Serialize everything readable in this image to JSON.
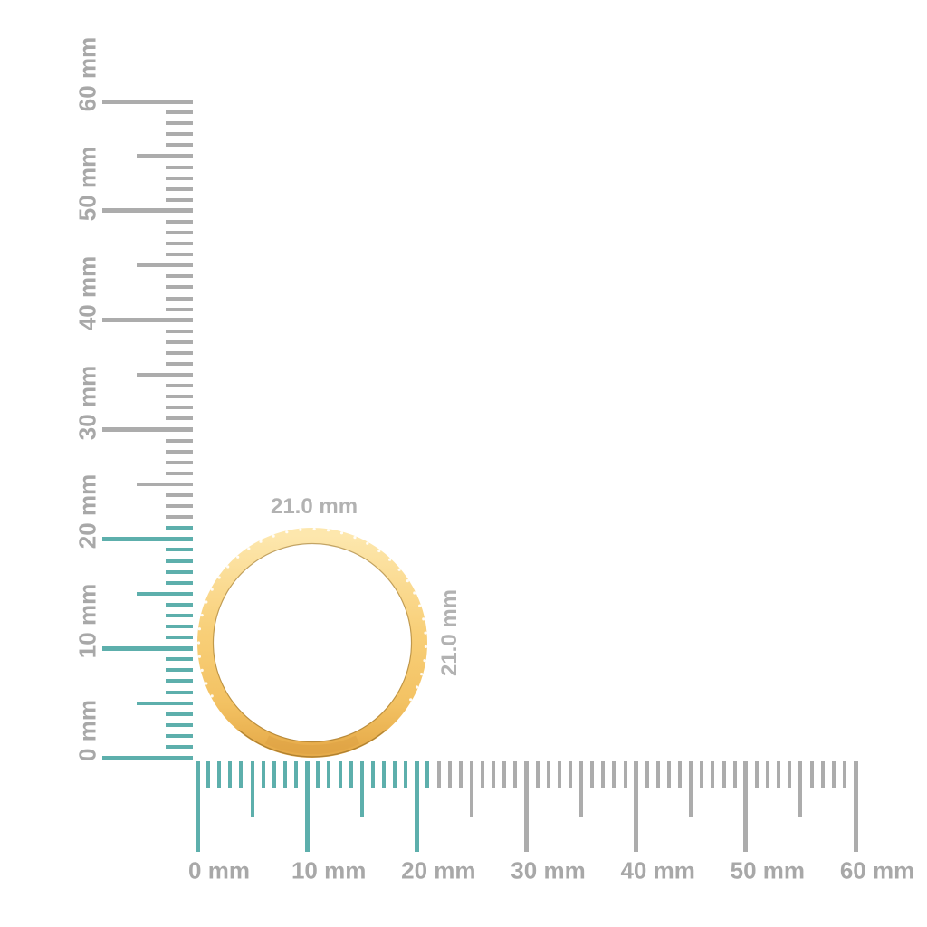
{
  "page": {
    "background": "#ffffff"
  },
  "colors": {
    "highlight_teal": "#5dafac",
    "tick_gray": "#acacac",
    "ruler_label_gray": "#a8a8a8",
    "dimension_label_gray": "#b2b2b2",
    "gold_stops": [
      "#fde7ad",
      "#f8cf78",
      "#f3c263",
      "#e6ab4a"
    ],
    "gold_inner_edge_dark": "#8a6420",
    "gold_bottom_shade": "#d89c3f",
    "stone_white": "#ffffff"
  },
  "vertical_ruler": {
    "orientation": "vertical",
    "unit": "mm",
    "min_mm": 0,
    "max_mm": 60,
    "minor_step_mm": 1,
    "medium_step_mm": 5,
    "major_step_mm": 10,
    "highlight_min_mm": 0,
    "highlight_max_mm": 21,
    "major_labels": [
      "0 mm",
      "10 mm",
      "20 mm",
      "30 mm",
      "40 mm",
      "50 mm",
      "60 mm"
    ]
  },
  "horizontal_ruler": {
    "orientation": "horizontal",
    "unit": "mm",
    "min_mm": 0,
    "max_mm": 60,
    "minor_step_mm": 1,
    "medium_step_mm": 5,
    "major_step_mm": 10,
    "highlight_min_mm": 0,
    "highlight_max_mm": 21,
    "major_labels": [
      "0 mm",
      "10 mm",
      "20 mm",
      "30 mm",
      "40 mm",
      "50 mm",
      "60 mm"
    ]
  },
  "ring": {
    "type": "gold-eternity-band-profile",
    "outer_diameter_mm": 21.0,
    "width_label": "21.0 mm",
    "height_label": "21.0 mm"
  }
}
